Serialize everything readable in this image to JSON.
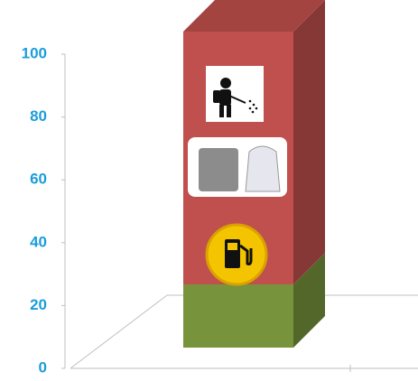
{
  "chart_data": {
    "type": "bar",
    "stacked": true,
    "series": [
      {
        "color": "#77933c",
        "values": [
          20
        ]
      },
      {
        "color": "#c0504d",
        "values": [
          80
        ]
      }
    ],
    "ylim": [
      0,
      100
    ],
    "yticks": [
      0,
      20,
      40,
      60,
      80,
      100
    ],
    "tick_color": "#1b9ddb"
  }
}
